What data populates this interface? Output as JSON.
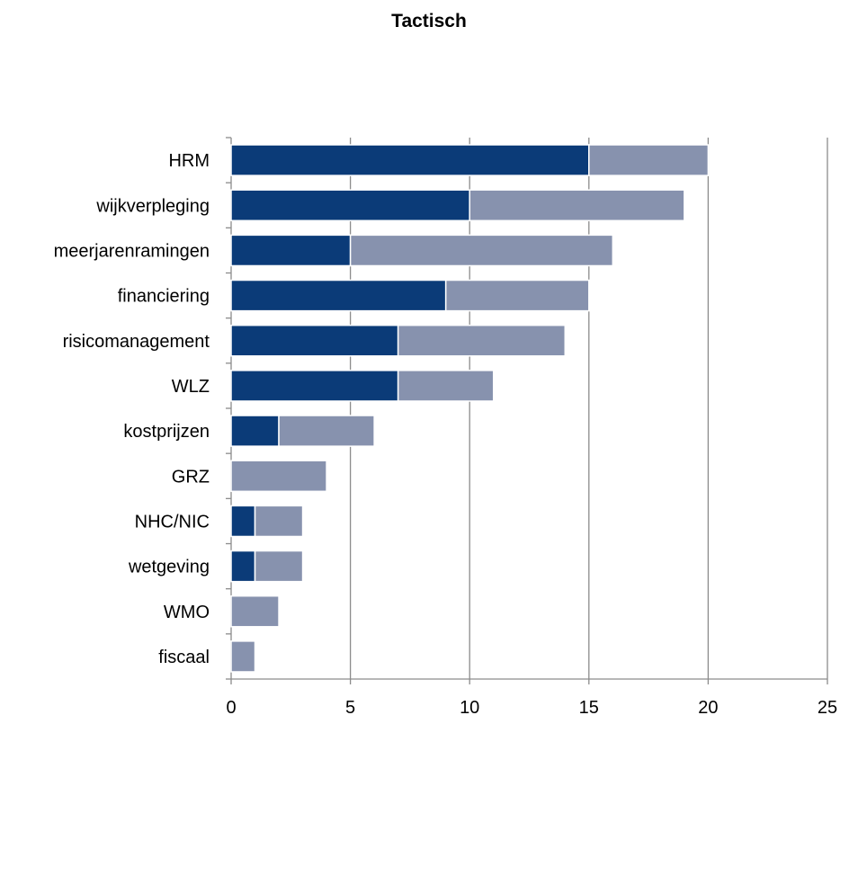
{
  "chart_data": {
    "type": "bar",
    "orientation": "horizontal",
    "stacked": true,
    "title": "Tactisch",
    "xlabel": "",
    "ylabel": "",
    "categories": [
      "HRM",
      "wijkverpleging",
      "meerjarenramingen",
      "financiering",
      "risicomanagement",
      "WLZ",
      "kostprijzen",
      "GRZ",
      "NHC/NIC",
      "wetgeving",
      "WMO",
      "fiscaal"
    ],
    "series": [
      {
        "values": [
          15,
          10,
          5,
          9,
          7,
          7,
          2,
          0,
          1,
          1,
          0,
          0
        ],
        "color": "#0b3b78"
      },
      {
        "values": [
          5,
          9,
          11,
          6,
          7,
          4,
          4,
          4,
          2,
          2,
          2,
          1
        ],
        "color": "#8792ae"
      }
    ],
    "xlim": [
      0,
      25
    ],
    "xticks": [
      0,
      5,
      10,
      15,
      20,
      25
    ],
    "xtick_labels": [
      "0",
      "5",
      "10",
      "15",
      "20",
      "25"
    ],
    "grid": "vertical",
    "legend": "none"
  }
}
